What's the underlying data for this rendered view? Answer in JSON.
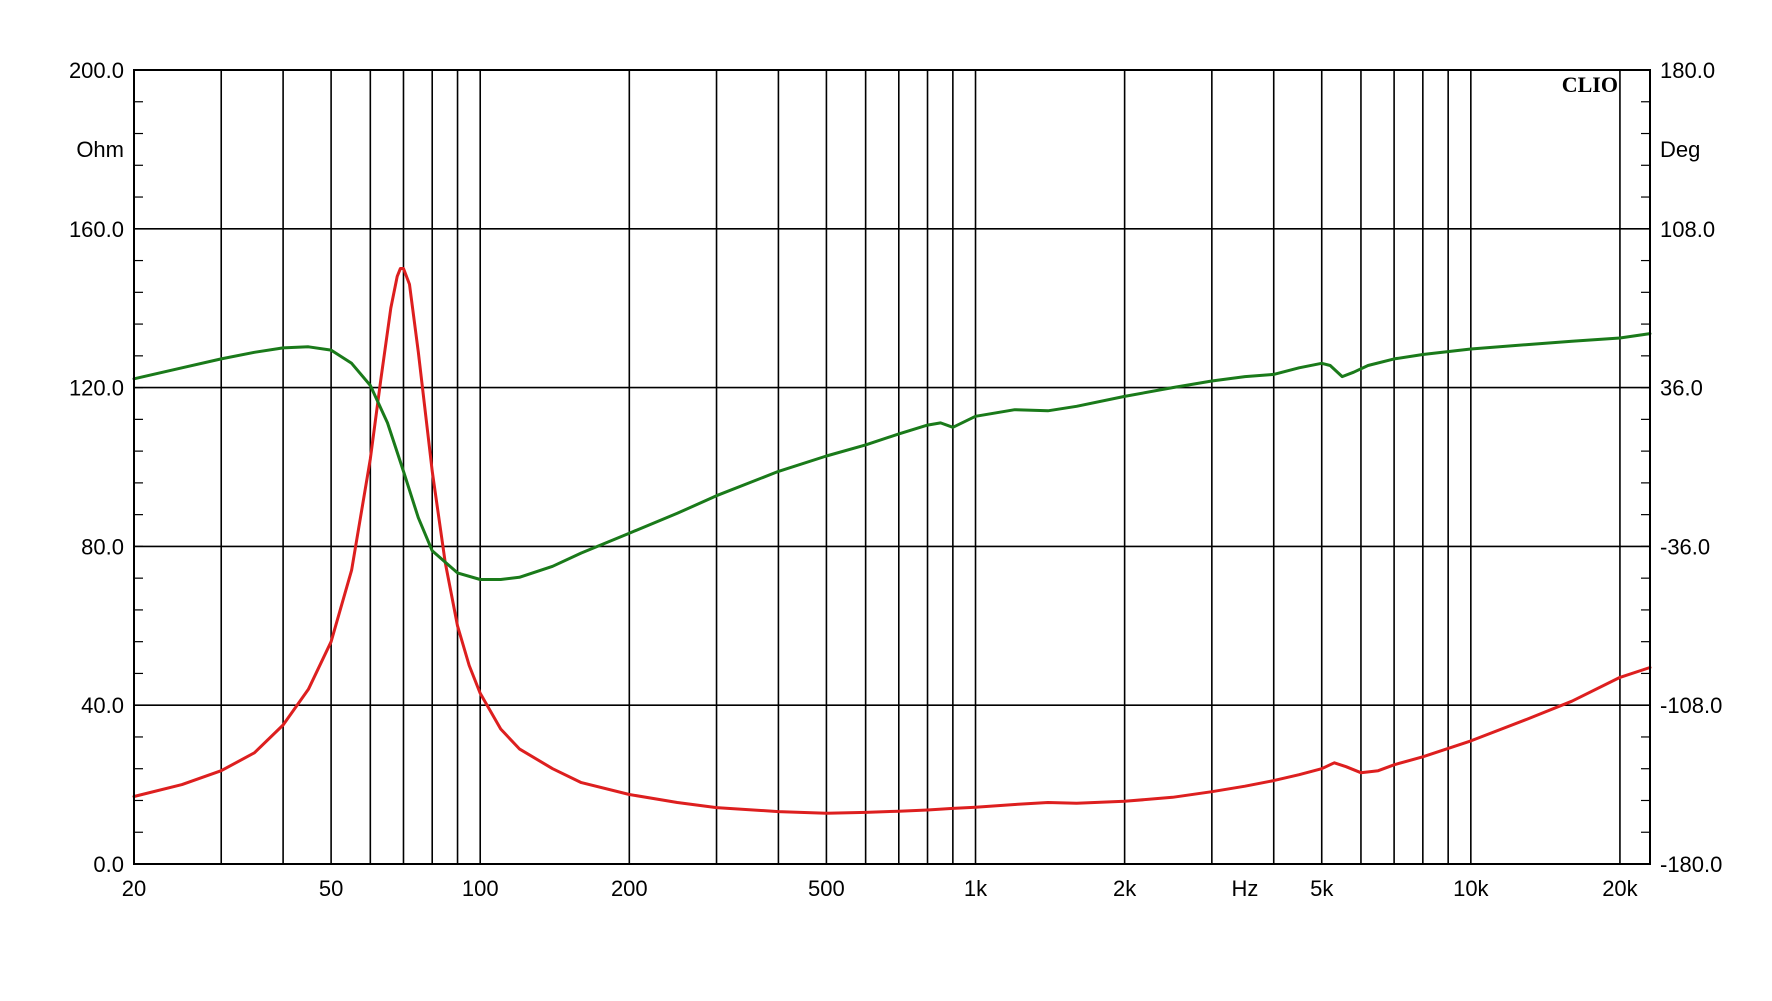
{
  "chart_data": {
    "type": "line",
    "brand": "CLIO",
    "x_unit": "Hz",
    "y_left_unit": "Ohm",
    "y_right_unit": "Deg",
    "x_scale": "log",
    "xlim": [
      20,
      23000
    ],
    "ylim_left": [
      0,
      200
    ],
    "ylim_right": [
      -180,
      180
    ],
    "grid": true,
    "x_gridlines": [
      30,
      40,
      50,
      60,
      70,
      80,
      90,
      100,
      200,
      300,
      400,
      500,
      600,
      700,
      800,
      900,
      1000,
      2000,
      3000,
      4000,
      5000,
      6000,
      7000,
      8000,
      9000,
      10000,
      20000
    ],
    "x_ticks": [
      {
        "value": 20,
        "label": "20"
      },
      {
        "value": 50,
        "label": "50"
      },
      {
        "value": 100,
        "label": "100"
      },
      {
        "value": 200,
        "label": "200"
      },
      {
        "value": 500,
        "label": "500"
      },
      {
        "value": 1000,
        "label": "1k"
      },
      {
        "value": 2000,
        "label": "2k"
      },
      {
        "value": 5000,
        "label": "5k"
      },
      {
        "value": 10000,
        "label": "10k"
      },
      {
        "value": 20000,
        "label": "20k"
      }
    ],
    "y_left_ticks": [
      {
        "value": 0,
        "label": "0.0"
      },
      {
        "value": 40,
        "label": "40.0"
      },
      {
        "value": 80,
        "label": "80.0"
      },
      {
        "value": 120,
        "label": "120.0"
      },
      {
        "value": 160,
        "label": "160.0"
      },
      {
        "value": 200,
        "label": "200.0"
      }
    ],
    "y_right_ticks": [
      {
        "value": -180,
        "label": "-180.0"
      },
      {
        "value": -108,
        "label": "-108.0"
      },
      {
        "value": -36,
        "label": "-36.0"
      },
      {
        "value": 36,
        "label": "36.0"
      },
      {
        "value": 108,
        "label": "108.0"
      },
      {
        "value": 180,
        "label": "180.0"
      }
    ],
    "series": [
      {
        "axis": "left",
        "color": "#dd1f1f",
        "x": [
          20,
          25,
          30,
          35,
          40,
          45,
          50,
          55,
          60,
          63,
          66,
          68,
          69,
          70,
          72,
          75,
          80,
          85,
          90,
          95,
          100,
          110,
          120,
          140,
          160,
          200,
          250,
          300,
          400,
          500,
          600,
          700,
          800,
          900,
          1000,
          1200,
          1400,
          1600,
          2000,
          2500,
          3000,
          3500,
          4000,
          4500,
          5000,
          5300,
          5600,
          6000,
          6500,
          7000,
          8000,
          10000,
          13000,
          16000,
          20000,
          23000
        ],
        "y": [
          17,
          20,
          23.5,
          28,
          35,
          44,
          56,
          74,
          102,
          122,
          140,
          148,
          150,
          150,
          146,
          129,
          99,
          76,
          60,
          50,
          43,
          34,
          29,
          24,
          20.5,
          17.5,
          15.5,
          14.2,
          13.2,
          12.8,
          13,
          13.3,
          13.6,
          14,
          14.3,
          15,
          15.5,
          15.3,
          15.8,
          16.8,
          18.2,
          19.6,
          21,
          22.5,
          24,
          25.5,
          24.5,
          23,
          23.5,
          25,
          27,
          31,
          36.5,
          41,
          47,
          49.5
        ]
      },
      {
        "axis": "right",
        "color": "#1a7a1a",
        "x": [
          20,
          25,
          30,
          35,
          40,
          45,
          50,
          55,
          60,
          65,
          70,
          75,
          80,
          90,
          100,
          110,
          120,
          140,
          160,
          200,
          250,
          300,
          400,
          500,
          600,
          700,
          800,
          850,
          900,
          1000,
          1200,
          1400,
          1600,
          2000,
          2500,
          3000,
          3500,
          4000,
          4500,
          5000,
          5200,
          5500,
          5800,
          6200,
          7000,
          8000,
          10000,
          13000,
          16000,
          20000,
          23000
        ],
        "y": [
          40,
          45,
          49,
          52,
          54,
          54.5,
          53,
          47,
          37,
          20,
          -2,
          -23,
          -38,
          -48,
          -51,
          -51,
          -50,
          -45,
          -39,
          -30,
          -21,
          -13,
          -2,
          5,
          10,
          15,
          19,
          20,
          18,
          23,
          26,
          25.5,
          27.5,
          32,
          36,
          39,
          41,
          42,
          45,
          47,
          46,
          41,
          43,
          46,
          49,
          51,
          53.5,
          55.5,
          57,
          58.5,
          60.5
        ]
      }
    ]
  }
}
